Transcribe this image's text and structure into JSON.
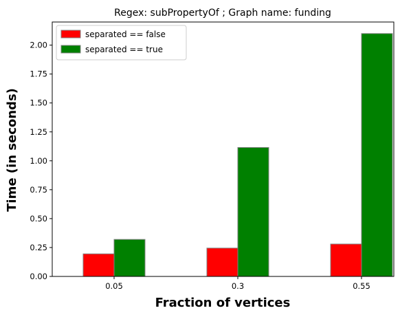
{
  "chart_data": {
    "type": "bar",
    "title": "Regex: subPropertyOf ; Graph name: funding",
    "xlabel": "Fraction of vertices",
    "ylabel": "Time (in seconds)",
    "categories": [
      "0.05",
      "0.3",
      "0.55"
    ],
    "series": [
      {
        "name": "separated == false",
        "color": "#ff0000",
        "values": [
          0.195,
          0.245,
          0.28
        ]
      },
      {
        "name": "separated == true",
        "color": "#008000",
        "values": [
          0.32,
          1.115,
          2.1
        ]
      }
    ],
    "ylim": [
      0,
      2.2
    ],
    "yticks": [
      "0.00",
      "0.25",
      "0.50",
      "0.75",
      "1.00",
      "1.25",
      "1.50",
      "1.75",
      "2.00"
    ],
    "grid": false,
    "legend_position": "top-left"
  }
}
